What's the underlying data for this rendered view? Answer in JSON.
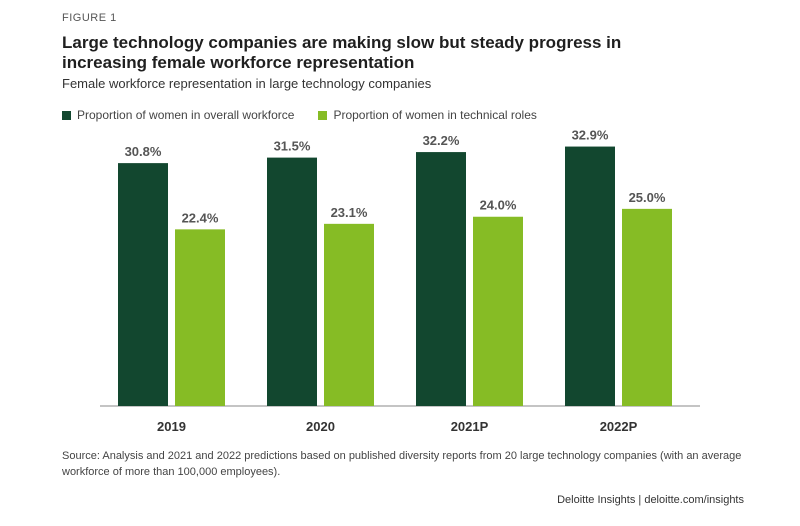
{
  "figure_label": "FIGURE 1",
  "title": "Large technology companies are making slow but steady progress in increasing female workforce representation",
  "subtitle": "Female workforce representation in large technology companies",
  "source": "Source: Analysis and 2021 and 2022 predictions based on published diversity reports from 20 large technology companies (with an average workforce of more than 100,000 employees).",
  "credit": "Deloitte Insights | deloitte.com/insights",
  "colors": {
    "dark_green": "#12472f",
    "light_green": "#86bc25",
    "axis": "#888888",
    "label": "#555555"
  },
  "chart_data": {
    "type": "bar",
    "title": "Large technology companies are making slow but steady progress in increasing female workforce representation",
    "subtitle": "Female workforce representation in large technology companies",
    "xlabel": "",
    "ylabel": "",
    "categories": [
      "2019",
      "2020",
      "2021P",
      "2022P"
    ],
    "series": [
      {
        "name": "Proportion of women in overall workforce",
        "values": [
          30.8,
          31.5,
          32.2,
          32.9
        ],
        "labels": [
          "30.8%",
          "31.5%",
          "32.2%",
          "32.9%"
        ],
        "color": "#12472f"
      },
      {
        "name": "Proportion of women in technical roles",
        "values": [
          22.4,
          23.1,
          24.0,
          25.0
        ],
        "labels": [
          "22.4%",
          "23.1%",
          "24.0%",
          "25.0%"
        ],
        "color": "#86bc25"
      }
    ],
    "ylim": [
      0,
      35
    ],
    "grid": false,
    "legend": "top-left"
  }
}
